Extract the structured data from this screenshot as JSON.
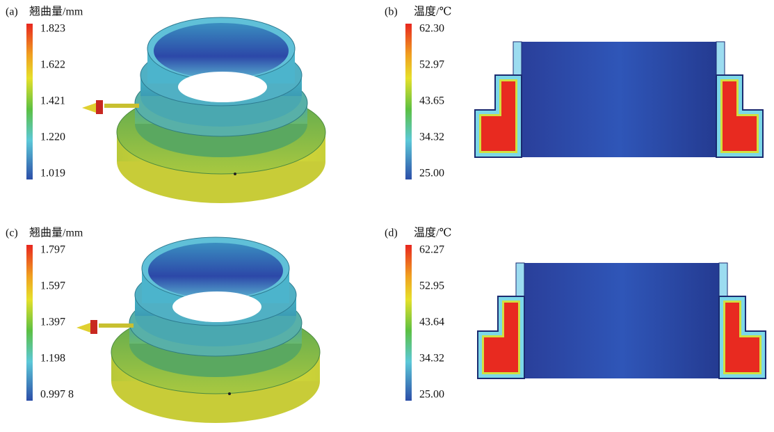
{
  "panels": [
    {
      "label": "(a)",
      "title": "翘曲量/mm",
      "scale": [
        "1.823",
        "1.622",
        "1.421",
        "1.220",
        "1.019"
      ]
    },
    {
      "label": "(b)",
      "title": "温度/℃",
      "scale": [
        "62.30",
        "52.97",
        "43.65",
        "34.32",
        "25.00"
      ]
    },
    {
      "label": "(c)",
      "title": "翘曲量/mm",
      "scale": [
        "1.797",
        "1.597",
        "1.397",
        "1.198",
        "0.997 8"
      ]
    },
    {
      "label": "(d)",
      "title": "温度/℃",
      "scale": [
        "62.27",
        "52.95",
        "43.64",
        "34.32",
        "25.00"
      ]
    }
  ]
}
